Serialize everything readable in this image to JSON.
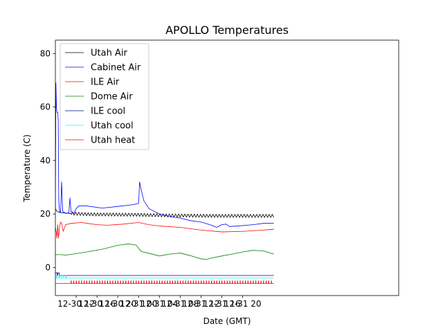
{
  "chart_data": {
    "type": "line",
    "title": "APOLLO Temperatures",
    "xlabel": "Date (GMT)",
    "ylabel": "Temperature (C)",
    "xlim": [
      0,
      66
    ],
    "ylim": [
      -10.5,
      85
    ],
    "x_unit": "hours since 12-30 08:00 GMT",
    "x_ticks": [
      {
        "value": 4,
        "label": "12-30 12"
      },
      {
        "value": 8,
        "label": "12-30 16"
      },
      {
        "value": 12,
        "label": "12-30 20"
      },
      {
        "value": 16,
        "label": "12-31 00"
      },
      {
        "value": 20,
        "label": "12-31 04"
      },
      {
        "value": 24,
        "label": "12-31 08"
      },
      {
        "value": 28,
        "label": "12-31 12"
      },
      {
        "value": 32,
        "label": "12-31 16"
      },
      {
        "value": 36,
        "label": "12-31 20"
      }
    ],
    "y_ticks": [
      {
        "value": 0,
        "label": "0"
      },
      {
        "value": 20,
        "label": "20"
      },
      {
        "value": 40,
        "label": "40"
      },
      {
        "value": 60,
        "label": "60"
      },
      {
        "value": 80,
        "label": "80"
      }
    ],
    "legend_position": "top-left",
    "series": [
      {
        "name": "Utah Air",
        "color": "#000000",
        "style": "oscillating",
        "points": [
          [
            0.0,
            22
          ],
          [
            0.3,
            21
          ],
          [
            1,
            20.5
          ],
          [
            3,
            20.2
          ],
          [
            6,
            19.9
          ],
          [
            10,
            19.8
          ],
          [
            16,
            19.7
          ],
          [
            20,
            19.5
          ],
          [
            25,
            19.4
          ],
          [
            30,
            19.3
          ],
          [
            36,
            19.3
          ],
          [
            40,
            19.3
          ],
          [
            42,
            19.3
          ]
        ],
        "osc_amp": 0.6,
        "osc_period": 0.6,
        "osc_from": 3
      },
      {
        "name": "Cabinet Air",
        "color": "#0000ff",
        "style": "line",
        "points": [
          [
            0.0,
            22
          ],
          [
            0.1,
            69
          ],
          [
            0.2,
            60
          ],
          [
            0.3,
            58
          ],
          [
            0.45,
            58
          ],
          [
            0.55,
            55
          ],
          [
            0.65,
            25
          ],
          [
            0.8,
            21
          ],
          [
            1.0,
            20.5
          ],
          [
            1.2,
            32
          ],
          [
            1.4,
            21
          ],
          [
            2.0,
            20.2
          ],
          [
            2.6,
            20.5
          ],
          [
            2.8,
            26
          ],
          [
            3.0,
            21
          ],
          [
            3.5,
            20
          ],
          [
            4.0,
            22
          ],
          [
            4.5,
            23
          ],
          [
            6.0,
            23
          ],
          [
            9.0,
            22.2
          ],
          [
            12.0,
            22.8
          ],
          [
            15.0,
            23.5
          ],
          [
            16.0,
            24
          ],
          [
            16.2,
            32
          ],
          [
            16.5,
            29
          ],
          [
            17.0,
            25
          ],
          [
            18.0,
            22
          ],
          [
            20.0,
            20
          ],
          [
            22.0,
            19
          ],
          [
            24.0,
            18.5
          ],
          [
            26.0,
            17.5
          ],
          [
            28.0,
            17
          ],
          [
            30.0,
            15.8
          ],
          [
            31.0,
            15
          ],
          [
            32.0,
            16
          ],
          [
            32.8,
            16.2
          ],
          [
            33.5,
            15.3
          ],
          [
            35.0,
            15.5
          ],
          [
            38.0,
            16
          ],
          [
            40.0,
            16.5
          ],
          [
            42.0,
            16.5
          ]
        ]
      },
      {
        "name": "ILE Air",
        "color": "#ff0000",
        "style": "line",
        "points": [
          [
            0.0,
            15
          ],
          [
            0.2,
            13
          ],
          [
            0.3,
            11
          ],
          [
            0.45,
            16
          ],
          [
            0.6,
            11
          ],
          [
            0.8,
            15
          ],
          [
            1.0,
            17
          ],
          [
            1.2,
            16.5
          ],
          [
            1.5,
            13.5
          ],
          [
            2.0,
            16
          ],
          [
            3.0,
            16.5
          ],
          [
            5.0,
            16.8
          ],
          [
            8.0,
            16
          ],
          [
            10.0,
            15.8
          ],
          [
            13.0,
            16.2
          ],
          [
            16.0,
            16.8
          ],
          [
            18.0,
            16
          ],
          [
            20.0,
            15.5
          ],
          [
            24.0,
            15
          ],
          [
            28.0,
            14
          ],
          [
            32.0,
            13.3
          ],
          [
            36.0,
            13.5
          ],
          [
            40.0,
            14
          ],
          [
            42.0,
            14.3
          ]
        ]
      },
      {
        "name": "Dome Air",
        "color": "#008000",
        "style": "line",
        "points": [
          [
            0.0,
            4.8
          ],
          [
            1,
            4.8
          ],
          [
            2,
            4.6
          ],
          [
            4,
            5.2
          ],
          [
            6,
            5.8
          ],
          [
            9,
            6.8
          ],
          [
            12,
            8.3
          ],
          [
            14,
            8.8
          ],
          [
            15.5,
            8.4
          ],
          [
            16.5,
            6
          ],
          [
            18,
            5.3
          ],
          [
            20,
            4.3
          ],
          [
            22,
            5
          ],
          [
            24,
            5.4
          ],
          [
            26,
            4.4
          ],
          [
            28,
            3.2
          ],
          [
            29,
            3
          ],
          [
            30,
            3.5
          ],
          [
            32,
            4.3
          ],
          [
            34,
            5
          ],
          [
            36,
            5.8
          ],
          [
            38,
            6.4
          ],
          [
            40,
            6.2
          ],
          [
            42,
            5
          ]
        ]
      },
      {
        "name": "ILE cool",
        "color": "#00008b",
        "style": "step",
        "points": [
          [
            0.0,
            -3
          ],
          [
            0.3,
            -2
          ],
          [
            0.6,
            -3
          ],
          [
            42,
            -3
          ]
        ],
        "on_value": -2,
        "off_value": -3,
        "on_intervals": [
          [
            0,
            0.35
          ],
          [
            0.45,
            0.75
          ]
        ]
      },
      {
        "name": "Utah cool",
        "color": "#00ffff",
        "style": "step",
        "points": [
          [
            0.0,
            -4
          ],
          [
            42,
            -4
          ]
        ],
        "on_value": -3,
        "off_value": -4,
        "on_intervals": [
          [
            0.2,
            0.4
          ],
          [
            0.7,
            0.9
          ],
          [
            1.3,
            1.5
          ],
          [
            1.9,
            2.05
          ]
        ]
      },
      {
        "name": "Utah heat",
        "color": "#ff0000",
        "style": "pulse",
        "points": [
          [
            0.0,
            -6
          ],
          [
            42,
            -6
          ]
        ],
        "on_value": -5,
        "off_value": -6,
        "pulse_period": 0.5,
        "pulse_from": 3
      }
    ]
  }
}
